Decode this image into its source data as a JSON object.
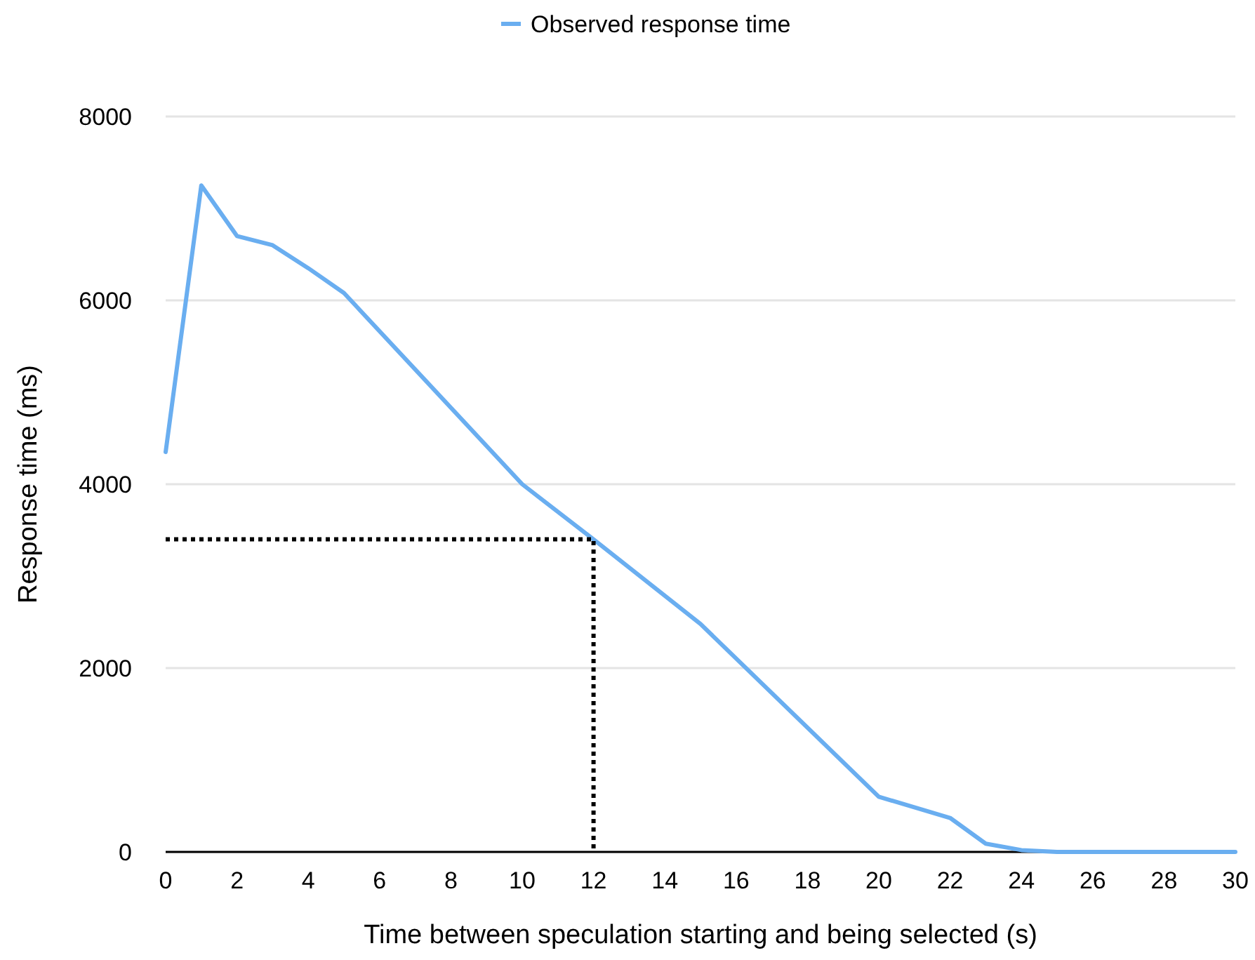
{
  "chart_data": {
    "type": "line",
    "xlabel": "Time between speculation starting and being selected (s)",
    "ylabel": "Response time (ms)",
    "xlim": [
      0,
      30
    ],
    "ylim": [
      0,
      8000
    ],
    "xticks": [
      0,
      2,
      4,
      6,
      8,
      10,
      12,
      14,
      16,
      18,
      20,
      22,
      24,
      26,
      28,
      30
    ],
    "yticks": [
      0,
      2000,
      4000,
      6000,
      8000
    ],
    "grid": "y",
    "legend": "top",
    "marker": "none",
    "series": [
      {
        "name": "Observed response time",
        "color": "#6aaef0",
        "line_style": "solid",
        "x": [
          0,
          1,
          2,
          3,
          4,
          5,
          10,
          12,
          15,
          20,
          22,
          23,
          24,
          25,
          30
        ],
        "values": [
          4350,
          7250,
          6700,
          6600,
          6350,
          6080,
          4000,
          3400,
          2480,
          600,
          370,
          90,
          20,
          0,
          0
        ]
      },
      {
        "type": "line",
        "color": "#000000",
        "line_style": "dotted",
        "x": [
          0,
          12,
          12
        ],
        "values": [
          3400,
          3400,
          0
        ]
      }
    ]
  }
}
